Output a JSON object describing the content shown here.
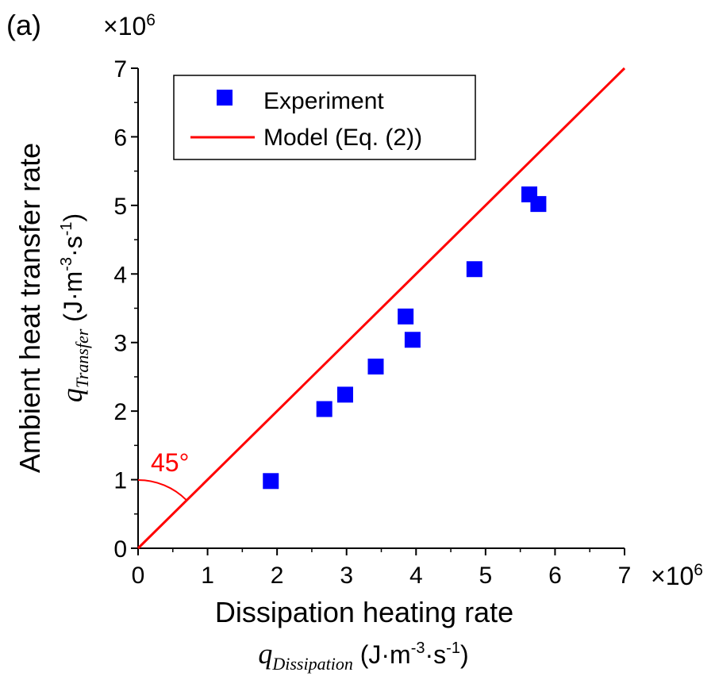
{
  "panel_label": "(a)",
  "chart_data": {
    "type": "scatter",
    "xlabel": {
      "text": "Dissipation heating rate",
      "symbol": "q",
      "symbol_subscript": "Dissipation",
      "unit_open": " (J·m",
      "unit_sup1": "-3",
      "unit_mid": "·s",
      "unit_sup2": "-1",
      "unit_close": ")"
    },
    "ylabel": {
      "text": "Ambient heat transfer rate",
      "symbol": "q",
      "symbol_subscript": "Transfer",
      "unit_open": " (J·m",
      "unit_sup1": "-3",
      "unit_mid": "·s",
      "unit_sup2": "-1",
      "unit_close": ")"
    },
    "x_multiplier": {
      "base": "×10",
      "exp": "6"
    },
    "y_multiplier": {
      "base": "×10",
      "exp": "6"
    },
    "xlim": [
      0,
      7
    ],
    "ylim": [
      0,
      7
    ],
    "xticks": [
      0,
      1,
      2,
      3,
      4,
      5,
      6,
      7
    ],
    "yticks": [
      0,
      1,
      2,
      3,
      4,
      5,
      6,
      7
    ],
    "xtick_labels": [
      "0",
      "1",
      "2",
      "3",
      "4",
      "5",
      "6",
      "7"
    ],
    "ytick_labels": [
      "0",
      "1",
      "2",
      "3",
      "4",
      "5",
      "6",
      "7"
    ],
    "grid": false,
    "legend": {
      "placement": "top-left"
    },
    "series": [
      {
        "name": "Experiment",
        "kind": "scatter",
        "marker": "square",
        "color": "#0000FF",
        "x": [
          1.91,
          2.68,
          2.98,
          3.42,
          3.85,
          3.95,
          4.84,
          5.63,
          5.76
        ],
        "y": [
          0.98,
          2.03,
          2.24,
          2.65,
          3.38,
          3.04,
          4.07,
          5.16,
          5.02
        ]
      },
      {
        "name": "Model (Eq. (2))",
        "kind": "line",
        "color": "#FF0000",
        "x": [
          0,
          7
        ],
        "y": [
          0,
          7
        ]
      }
    ],
    "annotations": [
      {
        "text": "45°",
        "color": "#FF0000"
      }
    ]
  }
}
